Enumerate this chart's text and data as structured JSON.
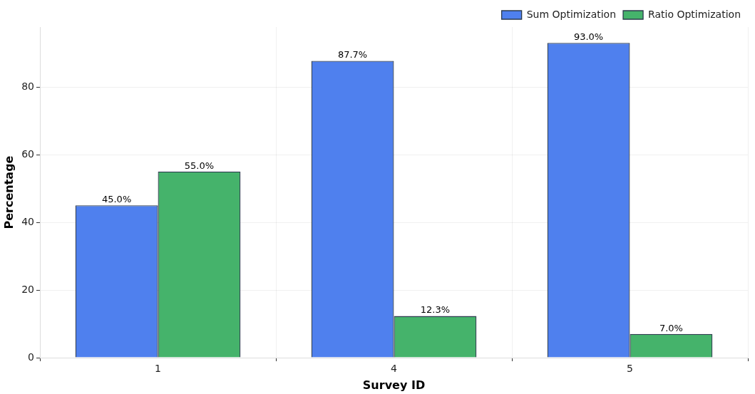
{
  "chart_data": {
    "type": "bar",
    "xlabel": "Survey ID",
    "ylabel": "Percentage",
    "categories": [
      "1",
      "4",
      "5"
    ],
    "series": [
      {
        "name": "Sum Optimization",
        "color": "#4f80ee",
        "values": [
          45.0,
          87.7,
          93.0
        ],
        "value_labels": [
          "45.0%",
          "87.7%",
          "93.0%"
        ]
      },
      {
        "name": "Ratio Optimization",
        "color": "#45b36b",
        "values": [
          55.0,
          12.3,
          7.0
        ],
        "value_labels": [
          "55.0%",
          "12.3%",
          "7.0%"
        ]
      }
    ],
    "ylim": [
      0,
      97.7
    ],
    "yticks": [
      0,
      20,
      40,
      60,
      80
    ],
    "grid": true,
    "legend": "top right"
  }
}
